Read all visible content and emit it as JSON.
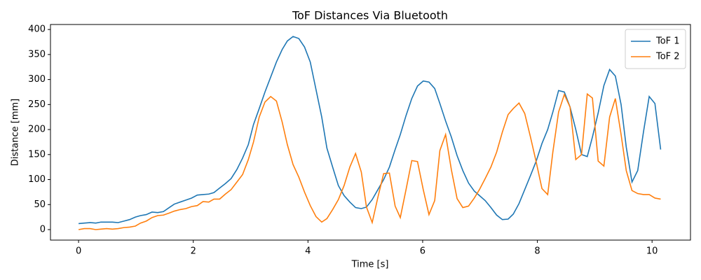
{
  "chart_data": {
    "type": "line",
    "title": "ToF Distances Via Bluetooth",
    "x_label": "Time [s]",
    "y_label": "Distance [mm]",
    "x": [
      0,
      0.1,
      0.2,
      0.3,
      0.39,
      0.49,
      0.59,
      0.69,
      0.79,
      0.89,
      0.99,
      1.08,
      1.18,
      1.28,
      1.38,
      1.48,
      1.58,
      1.67,
      1.77,
      1.87,
      1.97,
      2.07,
      2.17,
      2.27,
      2.36,
      2.46,
      2.56,
      2.66,
      2.76,
      2.86,
      2.96,
      3.05,
      3.15,
      3.25,
      3.35,
      3.45,
      3.55,
      3.64,
      3.74,
      3.84,
      3.94,
      4.04,
      4.14,
      4.24,
      4.33,
      4.43,
      4.53,
      4.63,
      4.73,
      4.83,
      4.93,
      5.02,
      5.12,
      5.22,
      5.32,
      5.42,
      5.52,
      5.61,
      5.71,
      5.81,
      5.91,
      6.01,
      6.11,
      6.21,
      6.3,
      6.4,
      6.5,
      6.6,
      6.7,
      6.8,
      6.9,
      6.99,
      7.09,
      7.19,
      7.29,
      7.39,
      7.49,
      7.58,
      7.68,
      7.78,
      7.88,
      7.98,
      8.08,
      8.18,
      8.27,
      8.37,
      8.47,
      8.57,
      8.67,
      8.77,
      8.87,
      8.96,
      9.06,
      9.16,
      9.26,
      9.36,
      9.46,
      9.55,
      9.65,
      9.75,
      9.85,
      9.95,
      10.05,
      10.15
    ],
    "series": [
      {
        "name": "ToF 1",
        "color": "#1f77b4",
        "values": [
          12,
          13,
          14,
          13,
          15,
          15,
          15,
          14,
          17,
          20,
          25,
          28,
          30,
          35,
          34,
          36,
          44,
          51,
          55,
          59,
          63,
          69,
          70,
          71,
          74,
          83,
          92,
          102,
          120,
          143,
          170,
          210,
          242,
          275,
          305,
          335,
          360,
          377,
          386,
          382,
          365,
          335,
          280,
          225,
          163,
          125,
          88,
          68,
          55,
          44,
          42,
          45,
          60,
          80,
          100,
          125,
          160,
          190,
          228,
          262,
          287,
          297,
          295,
          282,
          252,
          217,
          185,
          148,
          118,
          93,
          77,
          68,
          58,
          44,
          29,
          20,
          21,
          31,
          52,
          80,
          108,
          137,
          172,
          200,
          235,
          278,
          275,
          245,
          200,
          150,
          146,
          185,
          233,
          288,
          320,
          307,
          250,
          165,
          95,
          118,
          195,
          266,
          252,
          160
        ]
      },
      {
        "name": "ToF 2",
        "color": "#ff7f0e",
        "values": [
          0,
          2,
          2,
          0,
          1,
          2,
          1,
          2,
          4,
          5,
          7,
          13,
          17,
          24,
          28,
          29,
          33,
          37,
          40,
          42,
          46,
          48,
          56,
          55,
          61,
          61,
          71,
          80,
          95,
          110,
          140,
          175,
          225,
          255,
          266,
          257,
          215,
          170,
          130,
          105,
          75,
          48,
          26,
          15,
          22,
          40,
          60,
          88,
          125,
          152,
          115,
          45,
          14,
          65,
          112,
          113,
          47,
          24,
          80,
          138,
          136,
          80,
          30,
          58,
          158,
          190,
          120,
          62,
          44,
          47,
          63,
          80,
          102,
          125,
          155,
          195,
          230,
          242,
          253,
          232,
          185,
          135,
          82,
          70,
          155,
          235,
          270,
          245,
          140,
          150,
          271,
          263,
          137,
          127,
          225,
          262,
          190,
          118,
          78,
          72,
          70,
          70,
          63,
          61
        ]
      }
    ],
    "xlim": [
      -0.49,
      10.67
    ],
    "ylim": [
      -21,
      410
    ],
    "xticks": [
      0,
      2,
      4,
      6,
      8,
      10
    ],
    "yticks": [
      0,
      50,
      100,
      150,
      200,
      250,
      300,
      350,
      400
    ],
    "grid": false,
    "legend": "upper right"
  }
}
